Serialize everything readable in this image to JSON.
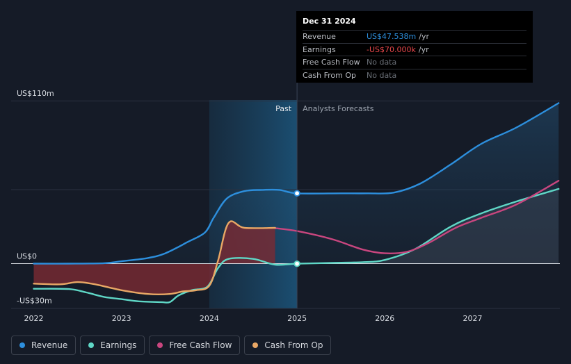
{
  "chart_data": {
    "type": "line",
    "title": "",
    "x_ticks": [
      2022,
      2023,
      2024,
      2025,
      2026,
      2027
    ],
    "x_tick_labels": [
      "2022",
      "2023",
      "2024",
      "2025",
      "2026",
      "2027"
    ],
    "x_range": [
      2021.75,
      2027.98
    ],
    "y_range": [
      -35,
      126
    ],
    "y_ticks": [
      {
        "value": 110,
        "label": "US$110m"
      },
      {
        "value": 0,
        "label": "US$0"
      },
      {
        "value": -30,
        "label": "-US$30m"
      }
    ],
    "gridlines_y": [
      110,
      50
    ],
    "past_region": [
      2024.0,
      2025.0
    ],
    "past_label": "Past",
    "forecast_label": "Analysts Forecasts",
    "series": [
      {
        "name": "Revenue",
        "color": "#2d8fdd",
        "points": [
          [
            2022,
            0
          ],
          [
            2022.4,
            0
          ],
          [
            2022.8,
            0.3
          ],
          [
            2023.0,
            1.6
          ],
          [
            2023.3,
            3.8
          ],
          [
            2023.5,
            7
          ],
          [
            2023.75,
            14.5
          ],
          [
            2023.95,
            21
          ],
          [
            2024.05,
            31
          ],
          [
            2024.2,
            44
          ],
          [
            2024.4,
            49
          ],
          [
            2024.6,
            49.8
          ],
          [
            2024.8,
            49.8
          ],
          [
            2025.0,
            47.5
          ],
          [
            2025.5,
            47.5
          ],
          [
            2025.8,
            47.5
          ],
          [
            2026.1,
            48
          ],
          [
            2026.4,
            54
          ],
          [
            2026.75,
            67
          ],
          [
            2027.1,
            81
          ],
          [
            2027.5,
            92
          ],
          [
            2027.98,
            108.5
          ]
        ]
      },
      {
        "name": "Earnings",
        "color": "#5fd7c6",
        "points": [
          [
            2022,
            -17
          ],
          [
            2022.4,
            -17.2
          ],
          [
            2022.6,
            -19.5
          ],
          [
            2022.8,
            -22.5
          ],
          [
            2023.0,
            -24
          ],
          [
            2023.2,
            -25.5
          ],
          [
            2023.45,
            -26
          ],
          [
            2023.55,
            -26
          ],
          [
            2023.65,
            -21.5
          ],
          [
            2023.8,
            -18
          ],
          [
            2023.98,
            -15.5
          ],
          [
            2024.1,
            -3
          ],
          [
            2024.22,
            3.2
          ],
          [
            2024.5,
            3.2
          ],
          [
            2024.75,
            -0.7
          ],
          [
            2025.0,
            -0.07
          ],
          [
            2025.4,
            0.5
          ],
          [
            2025.75,
            1
          ],
          [
            2026.0,
            2.5
          ],
          [
            2026.35,
            10
          ],
          [
            2026.75,
            25
          ],
          [
            2027.1,
            34
          ],
          [
            2027.5,
            42
          ],
          [
            2027.98,
            50.5
          ]
        ]
      },
      {
        "name": "Free Cash Flow",
        "color": "#c9467f",
        "points": [
          [
            2024.75,
            24
          ],
          [
            2025.0,
            22
          ],
          [
            2025.4,
            16.5
          ],
          [
            2025.75,
            9.5
          ],
          [
            2026.0,
            7
          ],
          [
            2026.25,
            8
          ],
          [
            2026.5,
            14
          ],
          [
            2026.8,
            24
          ],
          [
            2027.1,
            31
          ],
          [
            2027.5,
            40
          ],
          [
            2027.98,
            56
          ]
        ]
      },
      {
        "name": "Cash From Op",
        "color": "#e8a765",
        "points": [
          [
            2022,
            -13.5
          ],
          [
            2022.3,
            -14
          ],
          [
            2022.5,
            -12.5
          ],
          [
            2022.7,
            -14
          ],
          [
            2023.0,
            -18
          ],
          [
            2023.3,
            -20.5
          ],
          [
            2023.55,
            -20.5
          ],
          [
            2023.7,
            -18.8
          ],
          [
            2023.85,
            -18
          ],
          [
            2024.0,
            -15
          ],
          [
            2024.1,
            2
          ],
          [
            2024.22,
            27.5
          ],
          [
            2024.4,
            24.2
          ],
          [
            2024.75,
            24.2
          ]
        ]
      }
    ]
  },
  "tooltip": {
    "date": "Dec 31 2024",
    "rows": [
      {
        "label": "Revenue",
        "value": "US$47.538m",
        "unit": "/yr",
        "color": "#2d8fdd"
      },
      {
        "label": "Earnings",
        "value": "-US$70.000k",
        "unit": "/yr",
        "color": "#e8474b"
      },
      {
        "label": "Free Cash Flow",
        "value": "No data",
        "unit": "",
        "color": "#6b7078"
      },
      {
        "label": "Cash From Op",
        "value": "No data",
        "unit": "",
        "color": "#6b7078"
      }
    ]
  },
  "legend": [
    {
      "label": "Revenue",
      "color": "#2d8fdd"
    },
    {
      "label": "Earnings",
      "color": "#5fd7c6"
    },
    {
      "label": "Free Cash Flow",
      "color": "#c9467f"
    },
    {
      "label": "Cash From Op",
      "color": "#e8a765"
    }
  ]
}
